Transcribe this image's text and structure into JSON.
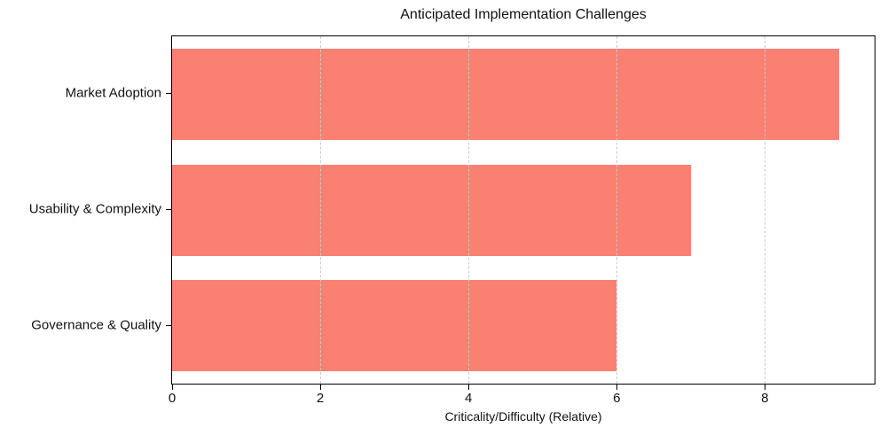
{
  "chart_data": {
    "type": "bar",
    "orientation": "horizontal",
    "title": "Anticipated Implementation Challenges",
    "xlabel": "Criticality/Difficulty (Relative)",
    "categories": [
      "Market Adoption",
      "Usability & Complexity",
      "Governance & Quality"
    ],
    "values": [
      9,
      7,
      6
    ],
    "xlim": [
      0,
      9.48
    ],
    "xticks": [
      0,
      2,
      4,
      6,
      8
    ],
    "bar_color": "#FA8072",
    "grid": "vertical dashed, drawn above bars",
    "grid_color": "#c8c8c8",
    "spine_color": "#000000",
    "text_color": "#111111",
    "legend": "none"
  }
}
